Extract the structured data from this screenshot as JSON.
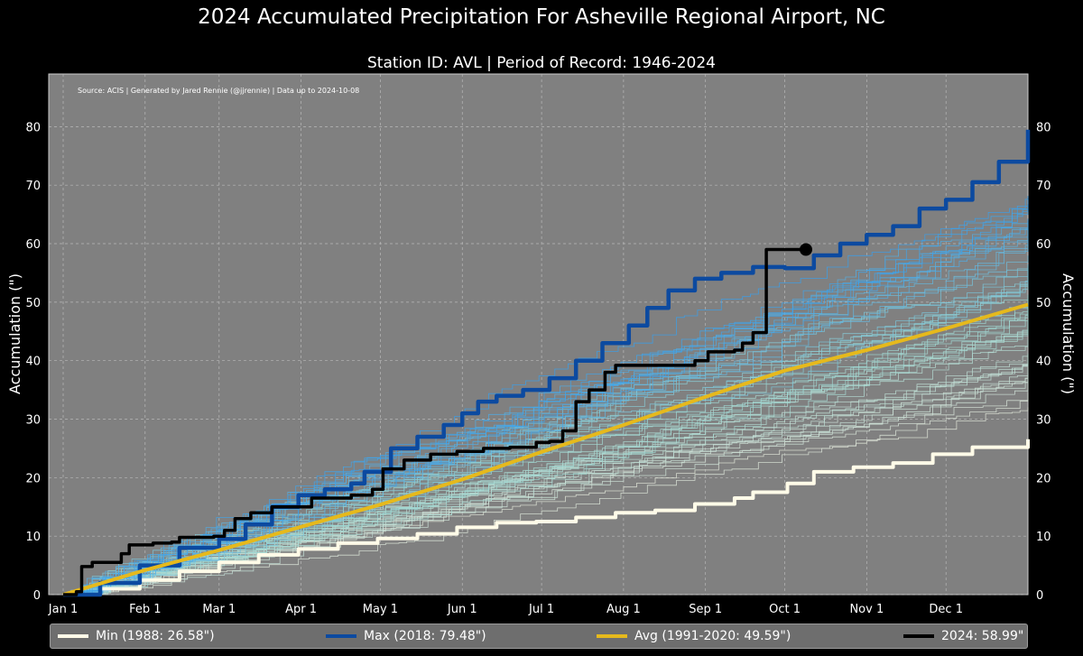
{
  "title": "2024 Accumulated Precipitation For Asheville Regional Airport, NC",
  "chart_data": {
    "type": "line",
    "title": "2024 Accumulated Precipitation For Asheville Regional Airport, NC",
    "subtitle": "Station ID: AVL | Period of Record: 1946-2024",
    "source_note": "Source: ACIS | Generated by Jared Rennie (@jjrennie) | Data up to 2024-10-08",
    "ylabel": "Accumulation (\")",
    "ylabel_right": "Accumulation (\")",
    "xlim": [
      1,
      366
    ],
    "ylim": [
      0,
      89
    ],
    "y_ticks": [
      0,
      10,
      20,
      30,
      40,
      50,
      60,
      70,
      80
    ],
    "x_ticks": [
      {
        "label": "Jan 1",
        "day": 1
      },
      {
        "label": "Feb 1",
        "day": 32
      },
      {
        "label": "Mar 1",
        "day": 60
      },
      {
        "label": "Apr 1",
        "day": 91
      },
      {
        "label": "May 1",
        "day": 121
      },
      {
        "label": "Jun 1",
        "day": 152
      },
      {
        "label": "Jul 1",
        "day": 182
      },
      {
        "label": "Aug 1",
        "day": 213
      },
      {
        "label": "Sep 1",
        "day": 244
      },
      {
        "label": "Oct 1",
        "day": 274
      },
      {
        "label": "Nov 1",
        "day": 305
      },
      {
        "label": "Dec 1",
        "day": 335
      }
    ],
    "grid": true,
    "legend_position": "bottom",
    "series": [
      {
        "name": "Min (1988: 26.58\")",
        "color": "#fffbe8",
        "points": [
          [
            1,
            0
          ],
          [
            15,
            1
          ],
          [
            30,
            2.5
          ],
          [
            45,
            4
          ],
          [
            60,
            5.5
          ],
          [
            75,
            6.8
          ],
          [
            90,
            7.8
          ],
          [
            105,
            8.8
          ],
          [
            120,
            9.6
          ],
          [
            135,
            10.4
          ],
          [
            150,
            11.5
          ],
          [
            165,
            12.3
          ],
          [
            180,
            12.5
          ],
          [
            195,
            13.2
          ],
          [
            210,
            14
          ],
          [
            225,
            14.4
          ],
          [
            240,
            15.5
          ],
          [
            255,
            16.5
          ],
          [
            262,
            17.5
          ],
          [
            275,
            19
          ],
          [
            285,
            21
          ],
          [
            300,
            21.8
          ],
          [
            315,
            22.5
          ],
          [
            330,
            24
          ],
          [
            345,
            25.2
          ],
          [
            366,
            26.58
          ]
        ]
      },
      {
        "name": "Max (2018: 79.48\")",
        "color": "#0c4aa0",
        "points": [
          [
            1,
            0
          ],
          [
            15,
            2
          ],
          [
            30,
            5
          ],
          [
            45,
            8
          ],
          [
            60,
            9.5
          ],
          [
            70,
            12
          ],
          [
            80,
            15
          ],
          [
            90,
            17
          ],
          [
            100,
            18
          ],
          [
            110,
            19
          ],
          [
            115,
            21
          ],
          [
            125,
            25
          ],
          [
            135,
            27
          ],
          [
            145,
            29
          ],
          [
            152,
            31
          ],
          [
            158,
            33
          ],
          [
            165,
            34
          ],
          [
            175,
            35
          ],
          [
            185,
            37
          ],
          [
            195,
            40
          ],
          [
            205,
            43
          ],
          [
            215,
            46
          ],
          [
            222,
            49
          ],
          [
            230,
            52
          ],
          [
            240,
            54
          ],
          [
            250,
            55
          ],
          [
            262,
            56
          ],
          [
            274,
            55.8
          ],
          [
            285,
            58
          ],
          [
            295,
            60
          ],
          [
            305,
            61.5
          ],
          [
            315,
            63
          ],
          [
            325,
            66
          ],
          [
            335,
            67.5
          ],
          [
            345,
            70.5
          ],
          [
            355,
            74
          ],
          [
            366,
            79.48
          ]
        ]
      },
      {
        "name": "Avg (1991-2020: 49.59\")",
        "color": "#e6b91c",
        "points": [
          [
            1,
            0
          ],
          [
            32,
            4.2
          ],
          [
            60,
            7.6
          ],
          [
            91,
            11.6
          ],
          [
            121,
            15.4
          ],
          [
            152,
            19.7
          ],
          [
            182,
            24.4
          ],
          [
            213,
            29
          ],
          [
            244,
            33.8
          ],
          [
            274,
            38.3
          ],
          [
            305,
            41.8
          ],
          [
            335,
            45.5
          ],
          [
            366,
            49.59
          ]
        ]
      },
      {
        "name": "2024: 58.99\"",
        "color": "#000000",
        "points": [
          [
            1,
            0
          ],
          [
            6,
            0.5
          ],
          [
            8,
            4.8
          ],
          [
            12,
            5.5
          ],
          [
            20,
            5.5
          ],
          [
            23,
            7
          ],
          [
            26,
            8.5
          ],
          [
            35,
            8.8
          ],
          [
            42,
            9
          ],
          [
            45,
            9.8
          ],
          [
            58,
            10
          ],
          [
            62,
            11
          ],
          [
            66,
            13
          ],
          [
            72,
            14
          ],
          [
            80,
            15
          ],
          [
            95,
            16.5
          ],
          [
            110,
            17
          ],
          [
            118,
            18
          ],
          [
            122,
            21.5
          ],
          [
            130,
            23
          ],
          [
            140,
            24
          ],
          [
            150,
            24.5
          ],
          [
            160,
            25
          ],
          [
            170,
            25.2
          ],
          [
            180,
            26
          ],
          [
            185,
            26.2
          ],
          [
            190,
            28
          ],
          [
            195,
            33
          ],
          [
            200,
            35
          ],
          [
            206,
            38
          ],
          [
            210,
            39.2
          ],
          [
            240,
            40
          ],
          [
            245,
            41.5
          ],
          [
            255,
            41.8
          ],
          [
            258,
            43
          ],
          [
            262,
            44.8
          ],
          [
            266,
            44.8
          ],
          [
            267,
            59
          ],
          [
            275,
            59
          ],
          [
            282,
            58.99
          ]
        ]
      }
    ],
    "endpoint_marker": {
      "day": 282,
      "value": 58.99
    },
    "background_years": "all years 1946-2024 shown as thin lines colored by total (white=dry to blue=wet)"
  },
  "legend": [
    {
      "label": "Min (1988: 26.58\")",
      "color": "#fffbe8"
    },
    {
      "label": "Max (2018: 79.48\")",
      "color": "#0c4aa0"
    },
    {
      "label": "Avg (1991-2020: 49.59\")",
      "color": "#e6b91c"
    },
    {
      "label": "2024: 58.99\"",
      "color": "#000000"
    }
  ]
}
